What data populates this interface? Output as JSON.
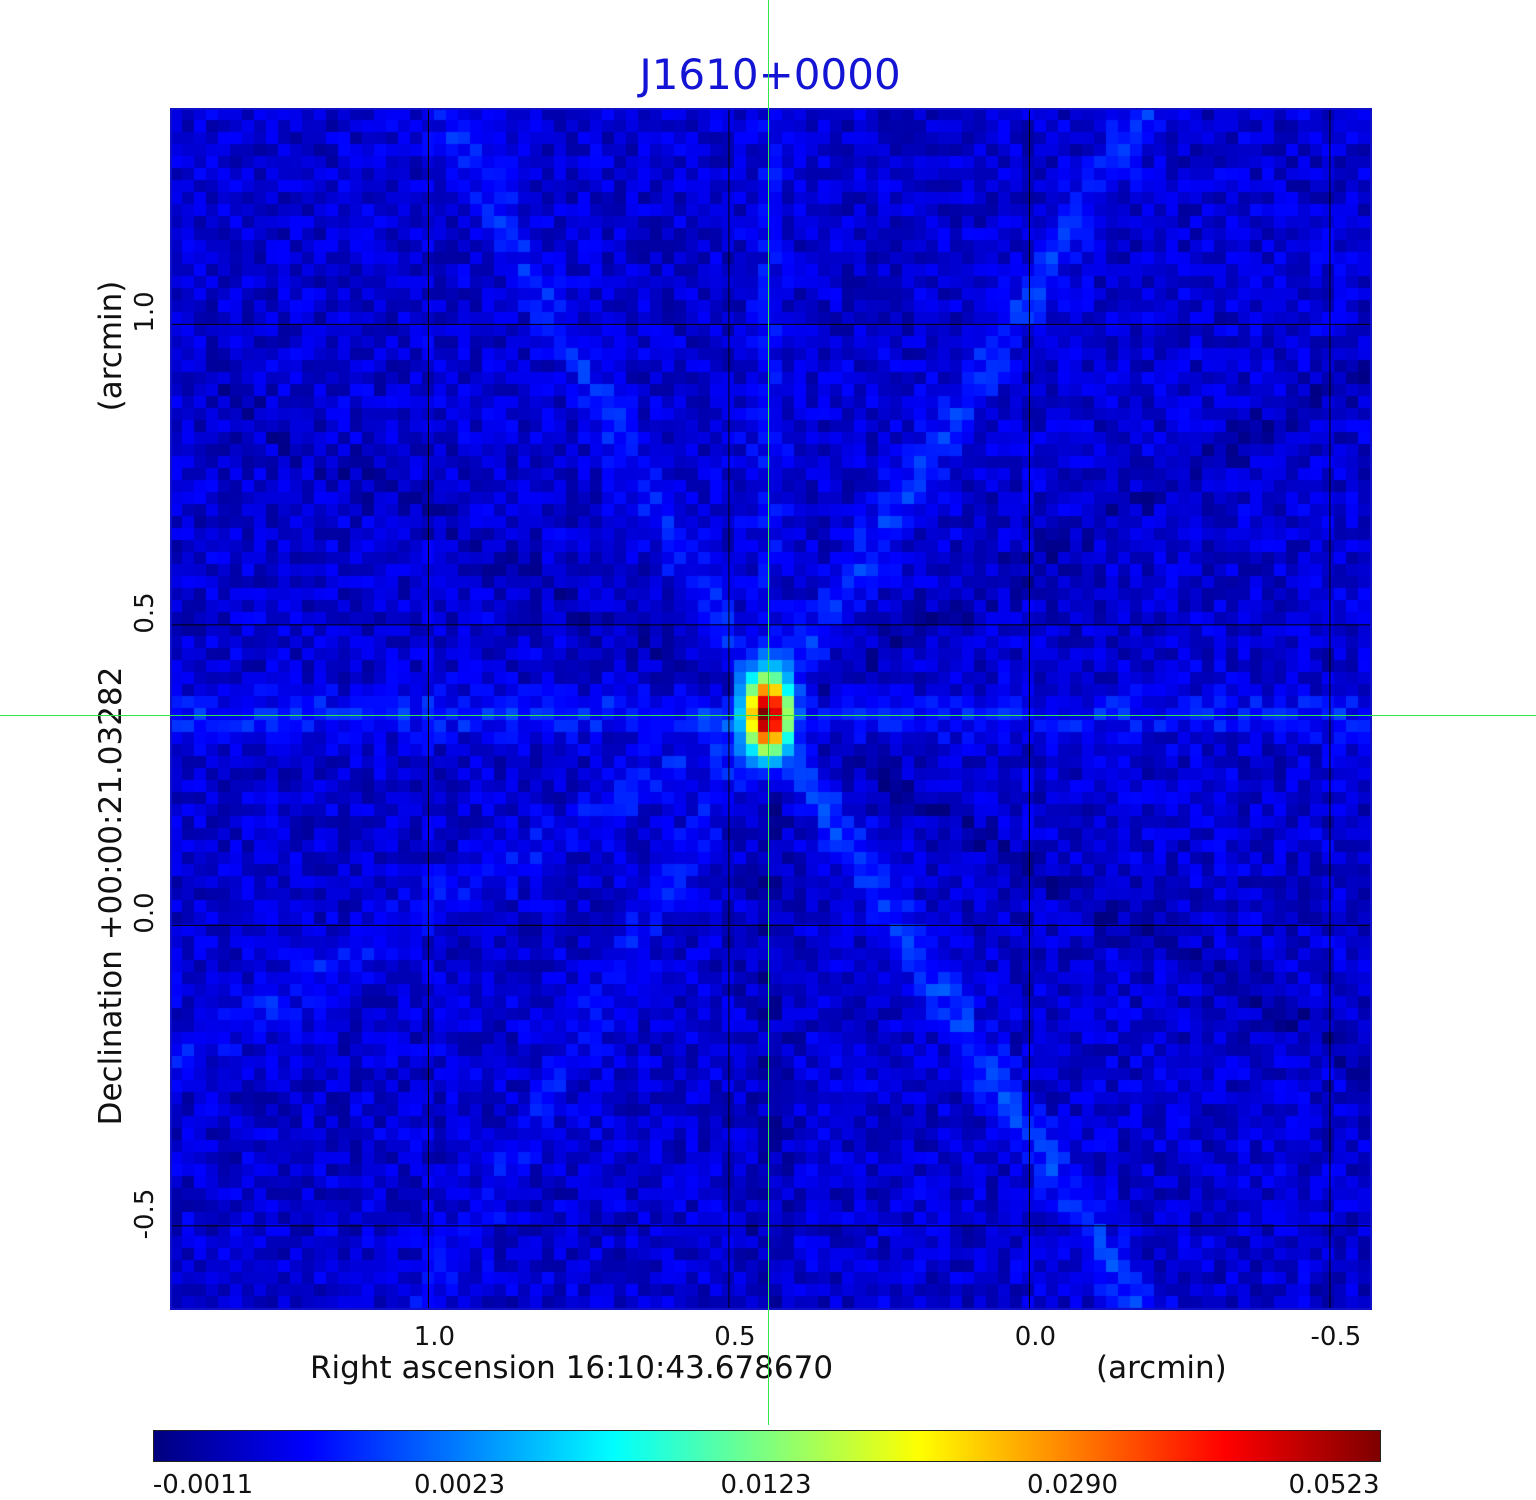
{
  "chart_data": {
    "type": "heatmap",
    "title": "J1610+0000",
    "xlabel": "Right ascension  16:10:43.678670",
    "xunit": "(arcmin)",
    "ylabel": "Declination  +00:00:21.03282",
    "yunit": "(arcmin)",
    "x_ticks": [
      "1.0",
      "0.5",
      "0.0",
      "-0.5"
    ],
    "x_tick_values": [
      1.0,
      0.5,
      0.0,
      -0.5
    ],
    "y_ticks": [
      "1.0",
      "0.5",
      "0.0",
      "-0.5"
    ],
    "y_tick_values": [
      1.0,
      0.5,
      0.0,
      -0.5
    ],
    "xlim": [
      1.43,
      -0.57
    ],
    "ylim": [
      -0.64,
      1.36
    ],
    "grid": true,
    "colormap": "jet",
    "colorbar": {
      "ticks": [
        "-0.0011",
        "0.0023",
        "0.0123",
        "0.0290",
        "0.0523"
      ],
      "tick_values": [
        -0.0011,
        0.0023,
        0.0123,
        0.029,
        0.0523
      ],
      "range": [
        -0.0011,
        0.0523
      ]
    },
    "source": {
      "x": 0.435,
      "y": 0.35,
      "peak": 0.0523
    },
    "cursor": {
      "x": 0.435,
      "y": 0.35
    },
    "background_level": 0.0
  },
  "colors": {
    "title": "#1414d4",
    "cursor": "#2fe64a",
    "frame": "#1010c8",
    "grid": "#000000"
  }
}
